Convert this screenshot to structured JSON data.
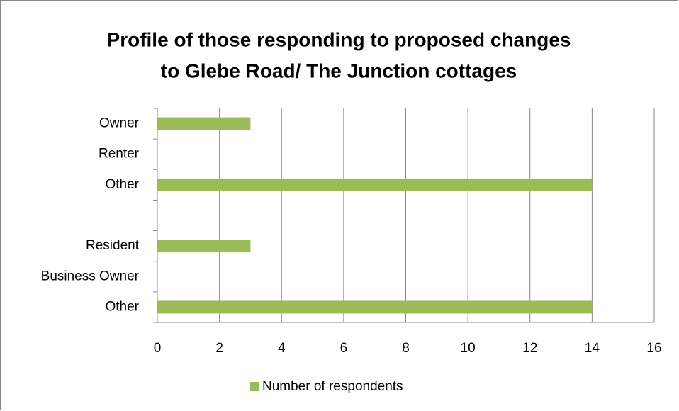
{
  "chart_data": {
    "type": "hbar",
    "title": [
      "Profile of those responding to proposed changes",
      "to Glebe Road/ The Junction cottages"
    ],
    "categories": [
      "Owner",
      "Renter",
      "Other",
      null,
      "Resident",
      "Business Owner",
      "Other"
    ],
    "series": [
      {
        "name": "Number of respondents",
        "color": "#9bbb59",
        "values": [
          3,
          0,
          14,
          null,
          3,
          0,
          14
        ]
      }
    ],
    "xlim": [
      0,
      16
    ],
    "xticks": [
      0,
      2,
      4,
      6,
      8,
      10,
      12,
      14,
      16
    ],
    "grid": true,
    "legend": "bottom"
  }
}
